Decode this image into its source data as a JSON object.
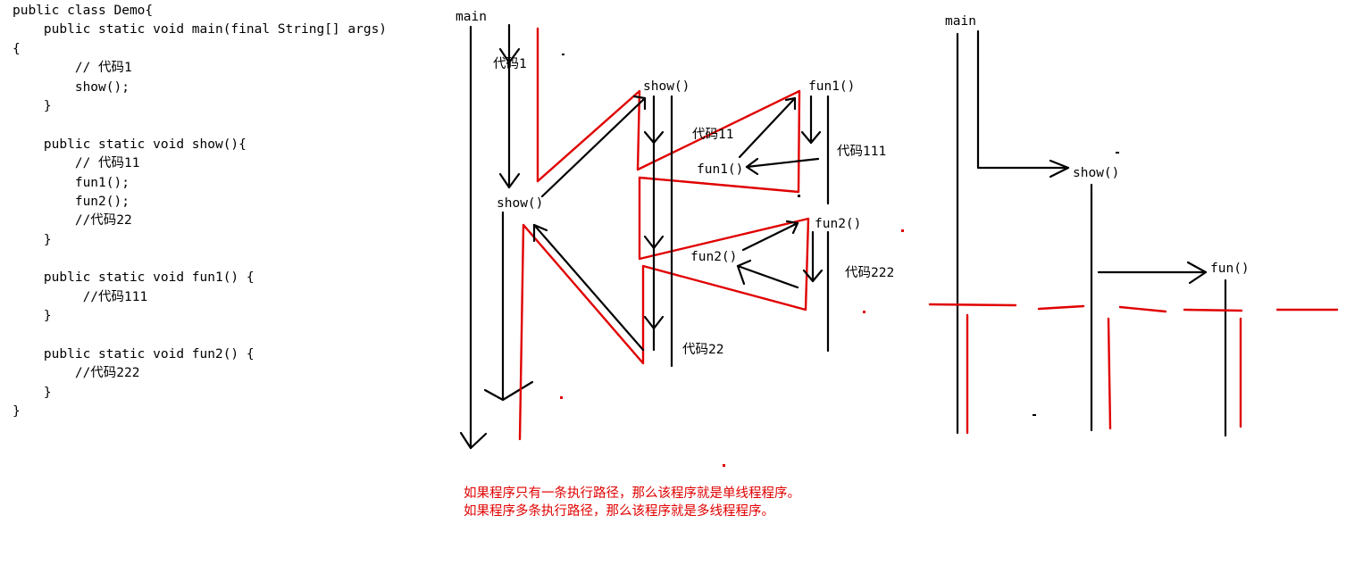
{
  "code_lines": [
    "public class Demo{",
    "    public static void main(final String[] args)",
    "{",
    "        // 代码1",
    "        show();",
    "    }",
    "",
    "    public static void show(){",
    "        // 代码11",
    "        fun1();",
    "        fun2();",
    "        //代码22",
    "    }",
    "",
    "    public static void fun1() {",
    "         //代码111",
    "    }",
    "",
    "    public static void fun2() {",
    "        //代码222",
    "    }",
    "}"
  ],
  "diagram_left": {
    "main": "main",
    "code1": "代码1",
    "show_call": "show()",
    "show_def": "show()",
    "fun1_def": "fun1()",
    "fun1_call": "fun1()",
    "fun2_def": "fun2()",
    "fun2_call": "fun2()",
    "code11": "代码11",
    "code111": "代码111",
    "code222": "代码222",
    "code22": "代码22"
  },
  "diagram_right": {
    "main": "main",
    "show": "show()",
    "fun": "fun()"
  },
  "notes": [
    "如果程序只有一条执行路径，那么该程序就是单线程程序。",
    "如果程序多条执行路径，那么该程序就是多线程程序。"
  ],
  "colors": {
    "ink": "#000000",
    "accent": "#e00000"
  }
}
